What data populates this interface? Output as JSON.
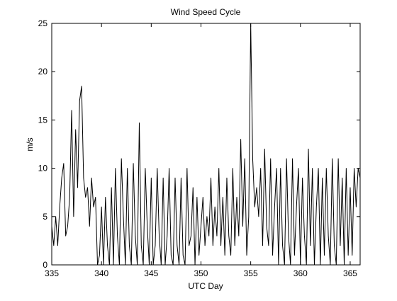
{
  "chart_data": {
    "type": "line",
    "title": "Wind Speed Cycle",
    "xlabel": "UTC Day",
    "ylabel": "m/s",
    "xlim": [
      335,
      366
    ],
    "xticks": [
      335,
      340,
      345,
      350,
      355,
      360,
      365
    ],
    "ylim": [
      0,
      25
    ],
    "yticks": [
      0,
      5,
      10,
      15,
      20,
      25
    ],
    "grid": false,
    "color": "#000000",
    "x": [
      335,
      335.2,
      335.4,
      335.6,
      335.8,
      336,
      336.2,
      336.4,
      336.6,
      336.8,
      337,
      337.2,
      337.4,
      337.6,
      337.8,
      338,
      338.2,
      338.4,
      338.6,
      338.8,
      339,
      339.2,
      339.4,
      339.6,
      339.8,
      340,
      340.2,
      340.4,
      340.6,
      340.8,
      341,
      341.2,
      341.4,
      341.6,
      341.8,
      342,
      342.2,
      342.4,
      342.6,
      342.8,
      343,
      343.2,
      343.4,
      343.6,
      343.8,
      344,
      344.2,
      344.4,
      344.6,
      344.8,
      345,
      345.2,
      345.4,
      345.6,
      345.8,
      346,
      346.2,
      346.4,
      346.6,
      346.8,
      347,
      347.2,
      347.4,
      347.6,
      347.8,
      348,
      348.2,
      348.4,
      348.6,
      348.8,
      349,
      349.2,
      349.4,
      349.6,
      349.8,
      350,
      350.2,
      350.4,
      350.6,
      350.8,
      351,
      351.2,
      351.4,
      351.6,
      351.8,
      352,
      352.2,
      352.4,
      352.6,
      352.8,
      353,
      353.2,
      353.4,
      353.6,
      353.8,
      354,
      354.2,
      354.4,
      354.6,
      354.8,
      355,
      355.2,
      355.4,
      355.6,
      355.8,
      356,
      356.2,
      356.4,
      356.6,
      356.8,
      357,
      357.2,
      357.4,
      357.6,
      357.8,
      358,
      358.2,
      358.4,
      358.6,
      358.8,
      359,
      359.2,
      359.4,
      359.6,
      359.8,
      360,
      360.2,
      360.4,
      360.6,
      360.8,
      361,
      361.2,
      361.4,
      361.6,
      361.8,
      362,
      362.2,
      362.4,
      362.6,
      362.8,
      363,
      363.2,
      363.4,
      363.6,
      363.8,
      364,
      364.2,
      364.4,
      364.6,
      364.8,
      365,
      365.2,
      365.4,
      365.6,
      365.8,
      366
    ],
    "values": [
      4,
      2,
      5,
      2,
      6,
      9,
      10.5,
      3,
      4,
      7,
      16,
      5,
      14,
      8,
      17,
      18.5,
      9,
      7,
      8,
      4,
      9,
      6,
      7,
      0,
      1,
      6,
      0,
      7,
      2,
      0,
      8,
      0,
      10,
      3,
      0,
      11,
      5,
      0,
      10,
      2,
      0,
      10.5,
      3,
      0,
      14.7,
      2,
      0,
      10,
      4,
      0,
      9,
      0,
      2,
      10,
      3,
      0,
      9,
      0,
      3,
      10,
      1,
      0,
      9,
      2,
      0,
      9,
      1,
      0,
      10,
      2,
      3,
      8,
      0,
      7,
      1,
      4,
      7,
      2,
      5,
      3,
      9,
      2,
      6,
      3,
      10,
      2,
      7,
      1,
      9,
      3,
      1,
      10,
      2,
      7,
      3,
      13,
      4,
      11,
      1,
      5,
      25,
      11,
      6,
      8,
      5,
      10,
      2,
      12,
      4,
      2,
      11,
      1,
      6,
      10,
      0,
      10,
      2,
      0,
      11,
      3,
      0,
      11,
      1,
      6,
      10,
      0,
      9,
      3,
      0,
      12,
      2,
      10,
      0,
      6,
      10,
      0,
      9,
      1,
      10,
      3,
      0,
      11,
      2,
      0,
      11,
      2,
      9,
      0,
      10,
      1,
      8,
      1,
      10,
      6,
      10,
      9
    ]
  }
}
